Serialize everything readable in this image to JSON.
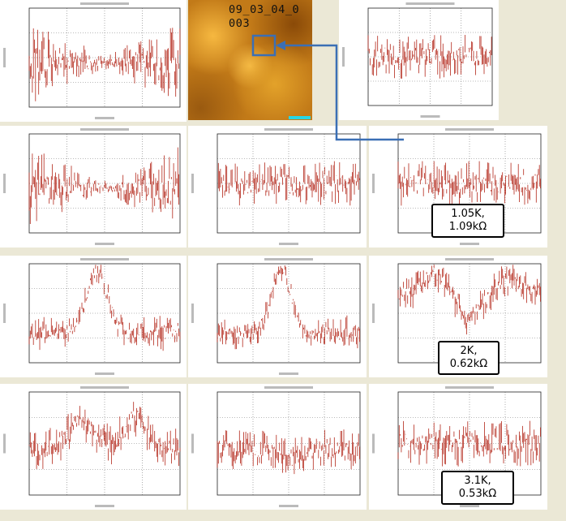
{
  "image_label": "09_03_04_0003",
  "annotations": [
    {
      "lines": [
        "1.05K,",
        "1.09kΩ"
      ]
    },
    {
      "lines": [
        "2K,",
        "0.62kΩ"
      ]
    },
    {
      "lines": [
        "3.1K,",
        "0.53kΩ"
      ]
    }
  ]
}
